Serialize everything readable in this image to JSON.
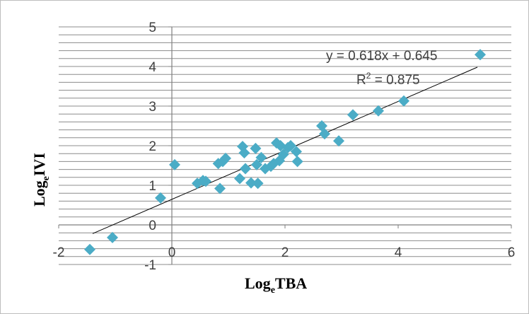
{
  "chart_data": {
    "type": "scatter",
    "title": "",
    "xlabel": {
      "main": "Log",
      "sub": "e",
      "rest": "TBA"
    },
    "ylabel": {
      "main": "Log",
      "sub": "e",
      "rest": "IVI"
    },
    "xlim": [
      -2,
      6
    ],
    "ylim": [
      -1,
      5
    ],
    "x_ticks": [
      -2,
      0,
      2,
      4,
      6
    ],
    "y_ticks": [
      -1,
      0,
      1,
      2,
      3,
      4,
      5
    ],
    "grid": "horizontal minor",
    "marker_color": "#4BACC6",
    "marker_shape": "diamond",
    "trendline": {
      "slope": 0.618,
      "intercept": 0.645,
      "x_range": [
        -1.4,
        5.4
      ],
      "equation": "y = 0.618x + 0.645",
      "r2_label": "R",
      "r2_sup": "2",
      "r2_value": " = 0.875"
    },
    "points": [
      {
        "x": -1.45,
        "y": -0.62
      },
      {
        "x": -1.05,
        "y": -0.32
      },
      {
        "x": -0.2,
        "y": 0.68
      },
      {
        "x": 0.05,
        "y": 1.52
      },
      {
        "x": 0.45,
        "y": 1.05
      },
      {
        "x": 0.55,
        "y": 1.12
      },
      {
        "x": 0.6,
        "y": 1.1
      },
      {
        "x": 0.82,
        "y": 1.55
      },
      {
        "x": 0.85,
        "y": 0.92
      },
      {
        "x": 0.9,
        "y": 1.6
      },
      {
        "x": 0.95,
        "y": 1.68
      },
      {
        "x": 1.2,
        "y": 1.17
      },
      {
        "x": 1.25,
        "y": 1.98
      },
      {
        "x": 1.28,
        "y": 1.82
      },
      {
        "x": 1.3,
        "y": 1.42
      },
      {
        "x": 1.4,
        "y": 1.06
      },
      {
        "x": 1.48,
        "y": 1.93
      },
      {
        "x": 1.5,
        "y": 1.52
      },
      {
        "x": 1.52,
        "y": 1.05
      },
      {
        "x": 1.58,
        "y": 1.7
      },
      {
        "x": 1.65,
        "y": 1.42
      },
      {
        "x": 1.75,
        "y": 1.48
      },
      {
        "x": 1.8,
        "y": 1.55
      },
      {
        "x": 1.85,
        "y": 2.07
      },
      {
        "x": 1.9,
        "y": 1.62
      },
      {
        "x": 1.92,
        "y": 2.0
      },
      {
        "x": 1.97,
        "y": 1.78
      },
      {
        "x": 2.05,
        "y": 1.95
      },
      {
        "x": 2.1,
        "y": 2.0
      },
      {
        "x": 2.2,
        "y": 1.85
      },
      {
        "x": 2.22,
        "y": 1.6
      },
      {
        "x": 2.65,
        "y": 2.5
      },
      {
        "x": 2.7,
        "y": 2.3
      },
      {
        "x": 2.95,
        "y": 2.12
      },
      {
        "x": 3.2,
        "y": 2.78
      },
      {
        "x": 3.65,
        "y": 2.88
      },
      {
        "x": 4.1,
        "y": 3.13
      },
      {
        "x": 5.45,
        "y": 4.3
      }
    ]
  }
}
